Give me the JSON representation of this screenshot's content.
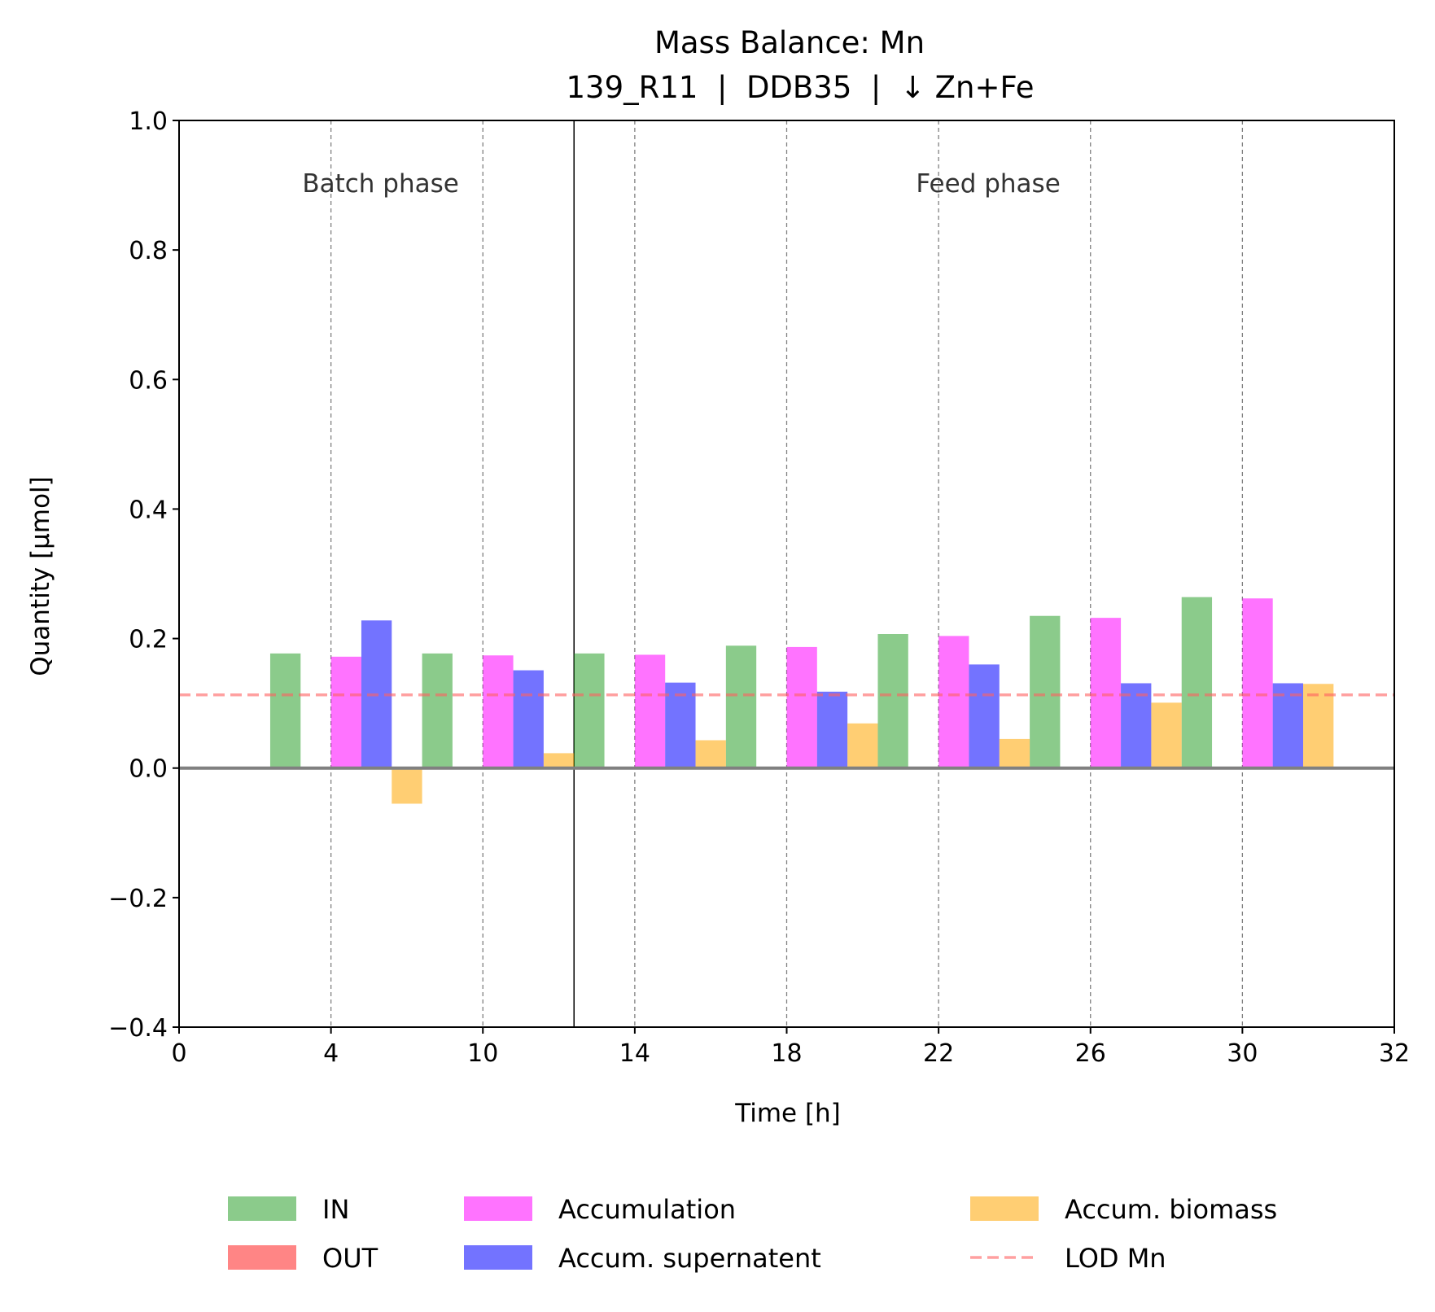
{
  "chart_data": {
    "type": "bar",
    "title": "Mass Balance: Mn",
    "subtitle": "139_R11  |  DDB35  |  ↓ Zn+Fe",
    "xlabel": "Time [h]",
    "ylabel": "Quantity [µmol]",
    "ylim": [
      -0.4,
      1.0
    ],
    "yticks": [
      -0.4,
      -0.2,
      0.0,
      0.2,
      0.4,
      0.6,
      0.8,
      1.0
    ],
    "ytick_labels": [
      "−0.4",
      "−0.2",
      "0.0",
      "0.2",
      "0.4",
      "0.6",
      "0.8",
      "1.0"
    ],
    "xtick_labels": [
      "0",
      "4",
      "10",
      "14",
      "18",
      "22",
      "26",
      "30",
      "32"
    ],
    "grid": "dashed vertical lines at sampling times",
    "phase_boundary_after_index": 1,
    "phase_labels": [
      "Batch phase",
      "Feed phase"
    ],
    "categories": [
      "4",
      "10",
      "14",
      "18",
      "22",
      "26",
      "30"
    ],
    "series": [
      {
        "name": "IN",
        "color": "#2ca02c",
        "values": [
          0.177,
          0.177,
          0.177,
          0.189,
          0.207,
          0.235,
          0.264
        ]
      },
      {
        "name": "OUT",
        "color": "#ff2020",
        "values": [
          -0.001,
          -0.001,
          -0.001,
          -0.001,
          -0.001,
          -0.001,
          -0.001
        ]
      },
      {
        "name": "Accumulation",
        "color": "#ff00ff",
        "values": [
          0.172,
          0.174,
          0.175,
          0.187,
          0.204,
          0.232,
          0.262
        ]
      },
      {
        "name": "Accum. supernatent",
        "color": "#0000ff",
        "values": [
          0.228,
          0.151,
          0.132,
          0.118,
          0.16,
          0.131,
          0.131
        ]
      },
      {
        "name": "Accum. biomass",
        "color": "#ffa500",
        "values": [
          -0.055,
          0.023,
          0.043,
          0.069,
          0.045,
          0.101,
          0.13
        ]
      }
    ],
    "reference_line": {
      "name": "LOD Mn",
      "value": 0.113,
      "color": "#ff6060",
      "style": "dashed"
    },
    "legend_placement": "bottom-center"
  }
}
